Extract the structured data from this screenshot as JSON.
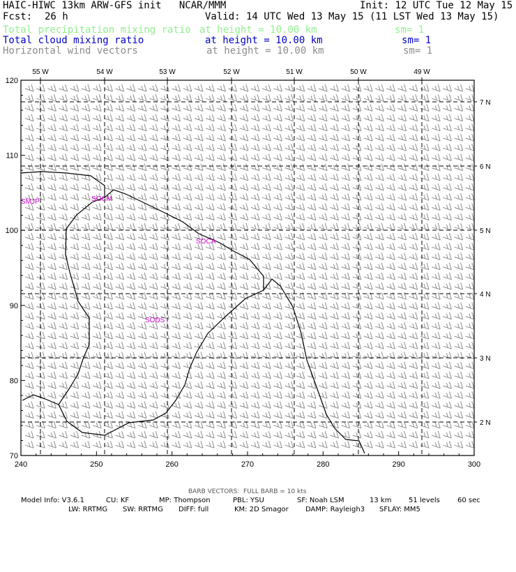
{
  "header": {
    "title_left": "HAIC-HIWC 13km ARW-GFS init   NCAR/MMM",
    "init": "Init: 12 UTC Tue 12 May 15",
    "fcst_label": "Fcst:",
    "fcst_value": "26 h",
    "valid": "Valid: 14 UTC Wed 13 May 15 (11 LST Wed 13 May 15)",
    "fields": [
      {
        "name": "Total precipitation mixing ratio",
        "level": "at height = 10.00 km",
        "sm": "sm= 1",
        "color": "#90ee90"
      },
      {
        "name": "Total cloud mixing ratio",
        "level": "at height = 10.00 km",
        "sm": "sm= 1",
        "color": "#0000c8"
      },
      {
        "name": "Horizontal wind vectors",
        "level": "at height = 10.00 km",
        "sm": "sm= 1",
        "color": "#8c8c8c"
      }
    ]
  },
  "map": {
    "x_ticks": [
      "240",
      "250",
      "260",
      "270",
      "280",
      "290",
      "300"
    ],
    "y_ticks": [
      "70",
      "80",
      "90",
      "100",
      "110",
      "120"
    ],
    "lon_labels": [
      "55 W",
      "54 W",
      "53 W",
      "52 W",
      "51 W",
      "50 W",
      "49 W"
    ],
    "lat_labels": [
      "7 N",
      "6 N",
      "5 N",
      "4 N",
      "3 N",
      "2 N"
    ],
    "stations": [
      "SMJP",
      "SOCM",
      "SOCA",
      "SODS"
    ],
    "station_color": "#cc00cc"
  },
  "footer": {
    "barb_note": "BARB VECTORS:  FULL BARB = 10 kts",
    "row1": [
      "Model Info: V3.6.1",
      "CU: KF",
      "MP: Thompson",
      "PBL: YSU",
      "SF: Noah LSM",
      "13 km",
      "51 levels",
      "60 sec"
    ],
    "row2": [
      "LW: RRTMG",
      "SW: RRTMG",
      "DIFF: full",
      "KM: 2D Smagor",
      "DAMP: Rayleigh3",
      "SFLAY: MM5"
    ]
  }
}
